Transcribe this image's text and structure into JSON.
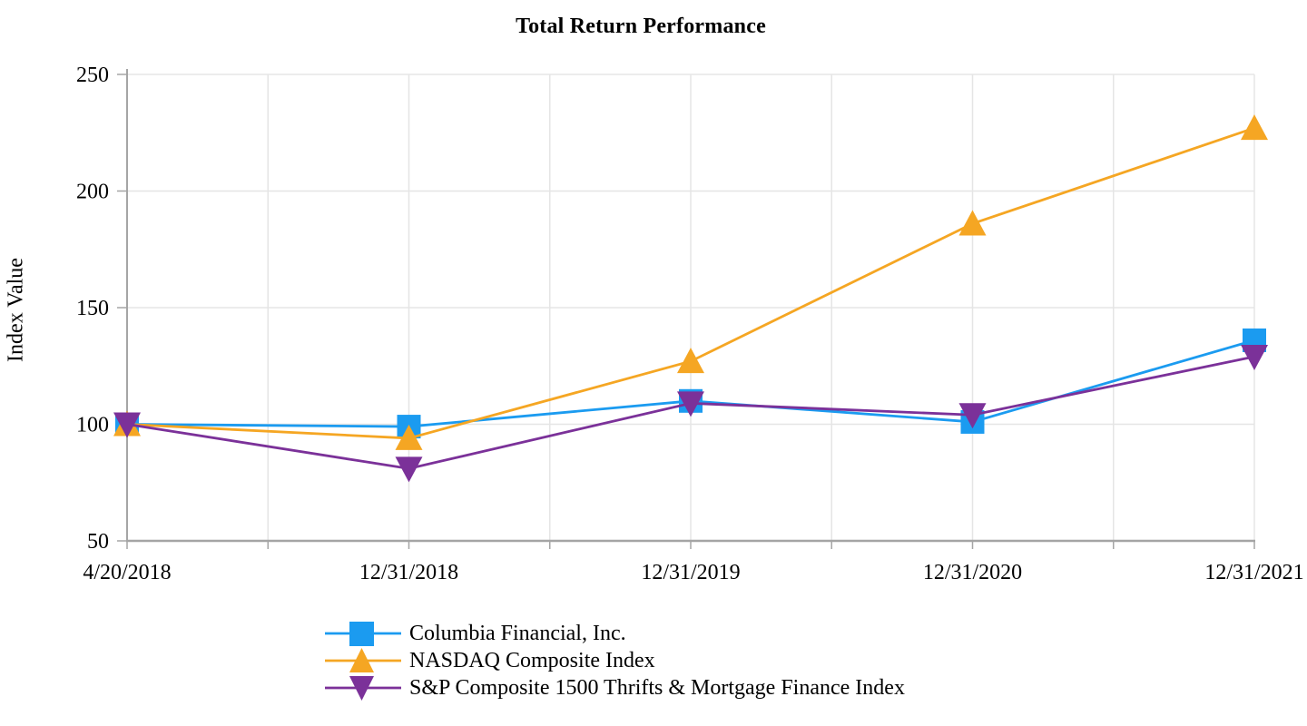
{
  "page": {
    "title": "Total Return Performance"
  },
  "chart_data": {
    "type": "line",
    "title": "Total Return Performance",
    "xlabel": "",
    "ylabel": "Index Value",
    "categories": [
      "4/20/2018",
      "12/31/2018",
      "12/31/2019",
      "12/31/2020",
      "12/31/2021"
    ],
    "series": [
      {
        "name": "Columbia Financial, Inc.",
        "marker": "square",
        "color": "#1B9BF0",
        "values": [
          100,
          99,
          110,
          101,
          136
        ]
      },
      {
        "name": "NASDAQ Composite Index",
        "marker": "triangle-up",
        "color": "#F5A623",
        "values": [
          100,
          94,
          127,
          186,
          227
        ]
      },
      {
        "name": "S&P Composite 1500 Thrifts & Mortgage Finance Index",
        "marker": "triangle-down",
        "color": "#7B3199",
        "values": [
          100,
          81,
          109,
          104,
          129
        ]
      }
    ],
    "ylim": [
      50,
      250
    ],
    "ytick_step": 50,
    "yticks": [
      50,
      100,
      150,
      200,
      250
    ],
    "grid": true,
    "minor_x_ticks_between_points": true,
    "legend_position": "bottom-left"
  },
  "colors": {
    "gridline": "#E5E5E5",
    "axis": "#A5A5A5",
    "text": "#000000",
    "background": "#FFFFFF"
  }
}
